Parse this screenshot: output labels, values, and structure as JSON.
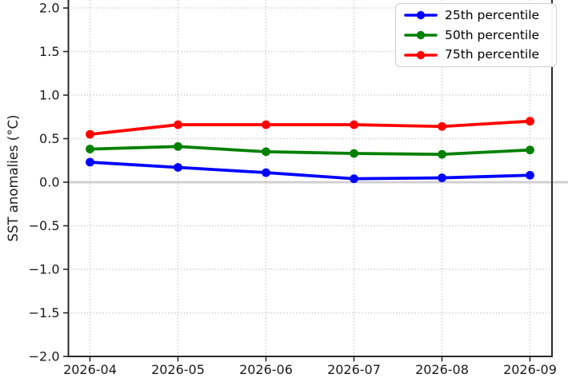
{
  "chart_data": {
    "type": "line",
    "title": "",
    "xlabel": "",
    "ylabel": "SST anomalies (°C)",
    "categories": [
      "2026-04",
      "2026-05",
      "2026-06",
      "2026-07",
      "2026-08",
      "2026-09"
    ],
    "series": [
      {
        "name": "25th percentile",
        "color": "#0000ff",
        "values": [
          0.23,
          0.17,
          0.11,
          0.04,
          0.05,
          0.08
        ]
      },
      {
        "name": "50th percentile",
        "color": "#008000",
        "values": [
          0.38,
          0.41,
          0.35,
          0.33,
          0.32,
          0.37
        ]
      },
      {
        "name": "75th percentile",
        "color": "#ff0000",
        "values": [
          0.55,
          0.66,
          0.66,
          0.66,
          0.64,
          0.7
        ]
      }
    ],
    "yticks": [
      2.0,
      1.5,
      1.0,
      0.5,
      0.0,
      -0.5,
      -1.0,
      -1.5,
      -2.0
    ],
    "ytick_labels": [
      "2.0",
      "1.5",
      "1.0",
      "0.5",
      "0.0",
      "−0.5",
      "−1.0",
      "−1.5",
      "−2.0"
    ],
    "ylim": [
      -2.0,
      2.1
    ],
    "grid": "dotted",
    "zero_line": true,
    "legend_position": "upper right",
    "colors": {
      "grid": "#c2c2c2",
      "zero_line": "#d0d0d0",
      "spine": "#2a2a2a",
      "tick_text": "#1a1a1a"
    }
  },
  "legend": {
    "items": [
      {
        "label": "25th percentile"
      },
      {
        "label": "50th percentile"
      },
      {
        "label": "75th percentile"
      }
    ]
  }
}
